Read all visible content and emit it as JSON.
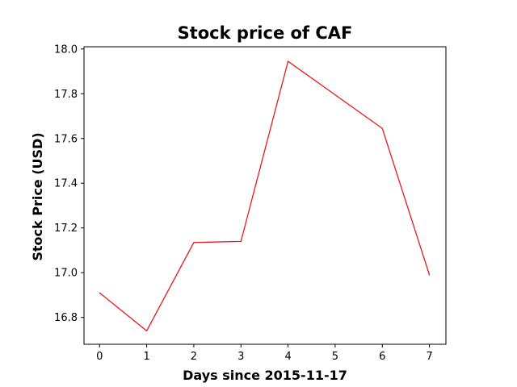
{
  "chart_data": {
    "type": "line",
    "title": "Stock price of CAF",
    "xlabel": "Days since 2015-11-17",
    "ylabel": "Stock Price (USD)",
    "x": [
      0,
      1,
      2,
      3,
      4,
      5,
      6,
      7
    ],
    "series": [
      {
        "values": [
          16.91,
          16.74,
          17.135,
          17.14,
          17.945,
          17.795,
          17.645,
          16.99
        ],
        "color": "#e31a1c"
      }
    ],
    "xlim": [
      -0.33,
      7.35
    ],
    "ylim": [
      16.68,
      18.01
    ],
    "x_ticks": [
      "0",
      "1",
      "2",
      "3",
      "4",
      "5",
      "6",
      "7"
    ],
    "y_ticks": [
      "16.8",
      "17.0",
      "17.2",
      "17.4",
      "17.6",
      "17.8",
      "18.0"
    ],
    "grid": false,
    "legend": "none"
  }
}
